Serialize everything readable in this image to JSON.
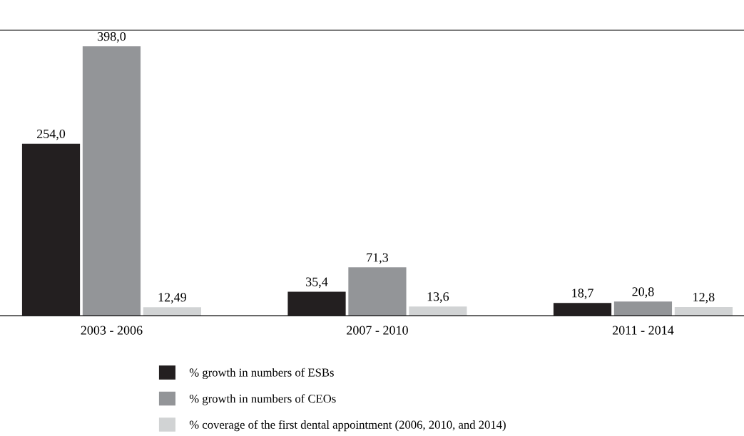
{
  "chart_data": {
    "type": "bar",
    "categories": [
      "2003 - 2006",
      "2007 - 2010",
      "2011 - 2014"
    ],
    "series": [
      {
        "name": "% growth in numbers of ESBs",
        "color": "#231f20",
        "values": [
          254.0,
          35.4,
          18.7
        ],
        "value_labels": [
          "254,0",
          "35,4",
          "18,7"
        ]
      },
      {
        "name": "% growth in numbers of CEOs",
        "color": "#939598",
        "values": [
          398.0,
          71.3,
          20.8
        ],
        "value_labels": [
          "398,0",
          "71,3",
          "20,8"
        ]
      },
      {
        "name": "% coverage of the first dental appointment (2006, 2010, and 2014)",
        "color": "#d1d3d4",
        "values": [
          12.49,
          13.6,
          12.8
        ],
        "value_labels": [
          "12,49",
          "13,6",
          "12,8"
        ]
      }
    ],
    "ylim": [
      0,
      422
    ],
    "tick_labels": "x",
    "legend": "bottom",
    "grid": false
  }
}
